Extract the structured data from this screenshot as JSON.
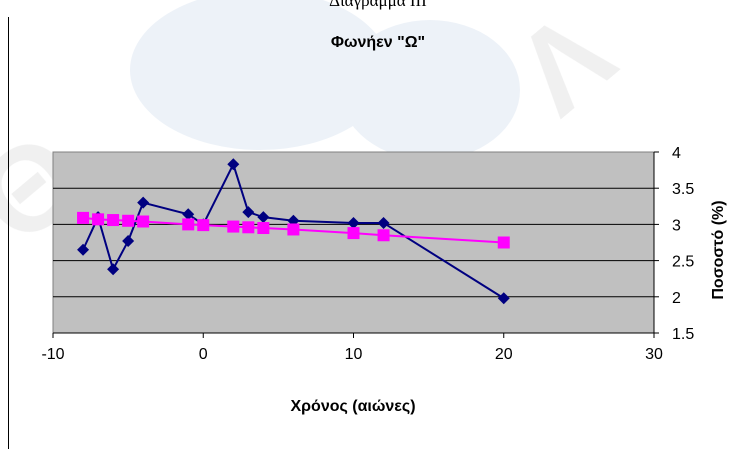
{
  "caption": "Διάγραμμα III",
  "chart_data": {
    "type": "line",
    "title": "Φωνήεν \"Ω\"",
    "xlabel": "Χρόνος (αιώνες)",
    "ylabel": "Ποσοστό (%)",
    "xlim": [
      -10,
      30
    ],
    "ylim": [
      1.5,
      4
    ],
    "x_ticks": [
      -10,
      0,
      10,
      20,
      30
    ],
    "y_ticks": [
      1.5,
      2,
      2.5,
      3,
      3.5,
      4
    ],
    "y_axis_side": "right",
    "grid": "horizontal",
    "plot_background": "#c0c0c0",
    "series": [
      {
        "color": "#000080",
        "marker": "diamond",
        "x": [
          -8,
          -7,
          -6,
          -5,
          -4,
          -1,
          0,
          2,
          3,
          4,
          6,
          10,
          12,
          20
        ],
        "y": [
          2.65,
          3.1,
          2.38,
          2.77,
          3.3,
          3.14,
          3.0,
          3.83,
          3.17,
          3.1,
          3.05,
          3.02,
          3.02,
          1.98
        ]
      },
      {
        "color": "#ff00ff",
        "marker": "square",
        "x": [
          -8,
          -7,
          -6,
          -5,
          -4,
          -1,
          0,
          2,
          3,
          4,
          6,
          10,
          12,
          20
        ],
        "y": [
          3.09,
          3.07,
          3.06,
          3.05,
          3.04,
          3.0,
          2.99,
          2.97,
          2.96,
          2.95,
          2.93,
          2.88,
          2.85,
          2.75
        ]
      }
    ]
  }
}
